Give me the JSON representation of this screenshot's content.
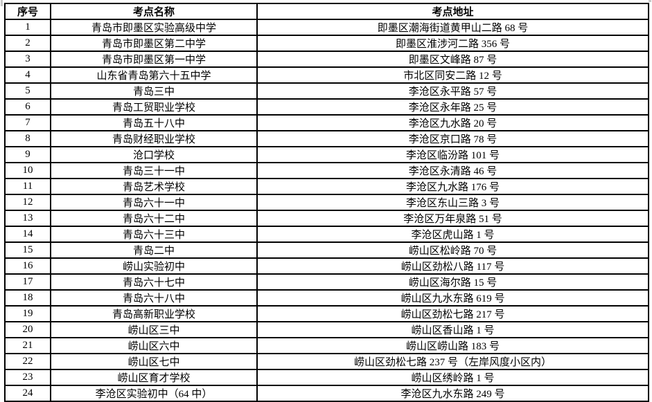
{
  "page": {
    "background": "#ffffff",
    "grid_border_color": "#000000",
    "text_color": "#000000"
  },
  "table": {
    "columns": [
      {
        "label": "序号"
      },
      {
        "label": "考点名称"
      },
      {
        "label": "考点地址"
      }
    ],
    "rows": [
      {
        "num": "1",
        "name": "青岛市即墨区实验高级中学",
        "addr": "即墨区潮海街道黄甲山二路 68 号"
      },
      {
        "num": "2",
        "name": "青岛市即墨区第二中学",
        "addr": "即墨区淮涉河二路 356 号"
      },
      {
        "num": "3",
        "name": "青岛市即墨区第一中学",
        "addr": "即墨区文峰路 87 号"
      },
      {
        "num": "4",
        "name": "山东省青岛第六十五中学",
        "addr": "市北区同安二路 12 号"
      },
      {
        "num": "5",
        "name": "青岛三中",
        "addr": "李沧区永平路 57 号"
      },
      {
        "num": "6",
        "name": "青岛工贸职业学校",
        "addr": "李沧区永年路 25 号"
      },
      {
        "num": "7",
        "name": "青岛五十八中",
        "addr": "李沧区九水路 20 号"
      },
      {
        "num": "8",
        "name": "青岛财经职业学校",
        "addr": "李沧区京口路 78 号"
      },
      {
        "num": "9",
        "name": "沧口学校",
        "addr": "李沧区临汾路 101 号"
      },
      {
        "num": "10",
        "name": "青岛三十一中",
        "addr": "李沧区永清路 46 号"
      },
      {
        "num": "11",
        "name": "青岛艺术学校",
        "addr": "李沧区九水路 176 号"
      },
      {
        "num": "12",
        "name": "青岛六十一中",
        "addr": "李沧区东山三路 3 号"
      },
      {
        "num": "13",
        "name": "青岛六十二中",
        "addr": "李沧区万年泉路 51 号"
      },
      {
        "num": "14",
        "name": "青岛六十三中",
        "addr": "李沧区虎山路 1 号"
      },
      {
        "num": "15",
        "name": "青岛二中",
        "addr": "崂山区松岭路 70 号"
      },
      {
        "num": "16",
        "name": "崂山实验初中",
        "addr": "崂山区劲松八路 117 号"
      },
      {
        "num": "17",
        "name": "青岛六十七中",
        "addr": "崂山区海尔路 15 号"
      },
      {
        "num": "18",
        "name": "青岛六十八中",
        "addr": "崂山区九水东路 619 号"
      },
      {
        "num": "19",
        "name": "青岛高新职业学校",
        "addr": "崂山区劲松七路 217 号"
      },
      {
        "num": "20",
        "name": "崂山区三中",
        "addr": "崂山区香山路 1 号"
      },
      {
        "num": "21",
        "name": "崂山区六中",
        "addr": "崂山区崂山路 183 号"
      },
      {
        "num": "22",
        "name": "崂山区七中",
        "addr": "崂山区劲松七路 237 号（左岸风度小区内）"
      },
      {
        "num": "23",
        "name": "崂山区育才学校",
        "addr": "崂山区绣岭路 1 号"
      },
      {
        "num": "24",
        "name": "李沧区实验初中（64 中）",
        "addr": "李沧区九水东路 249 号"
      }
    ]
  }
}
